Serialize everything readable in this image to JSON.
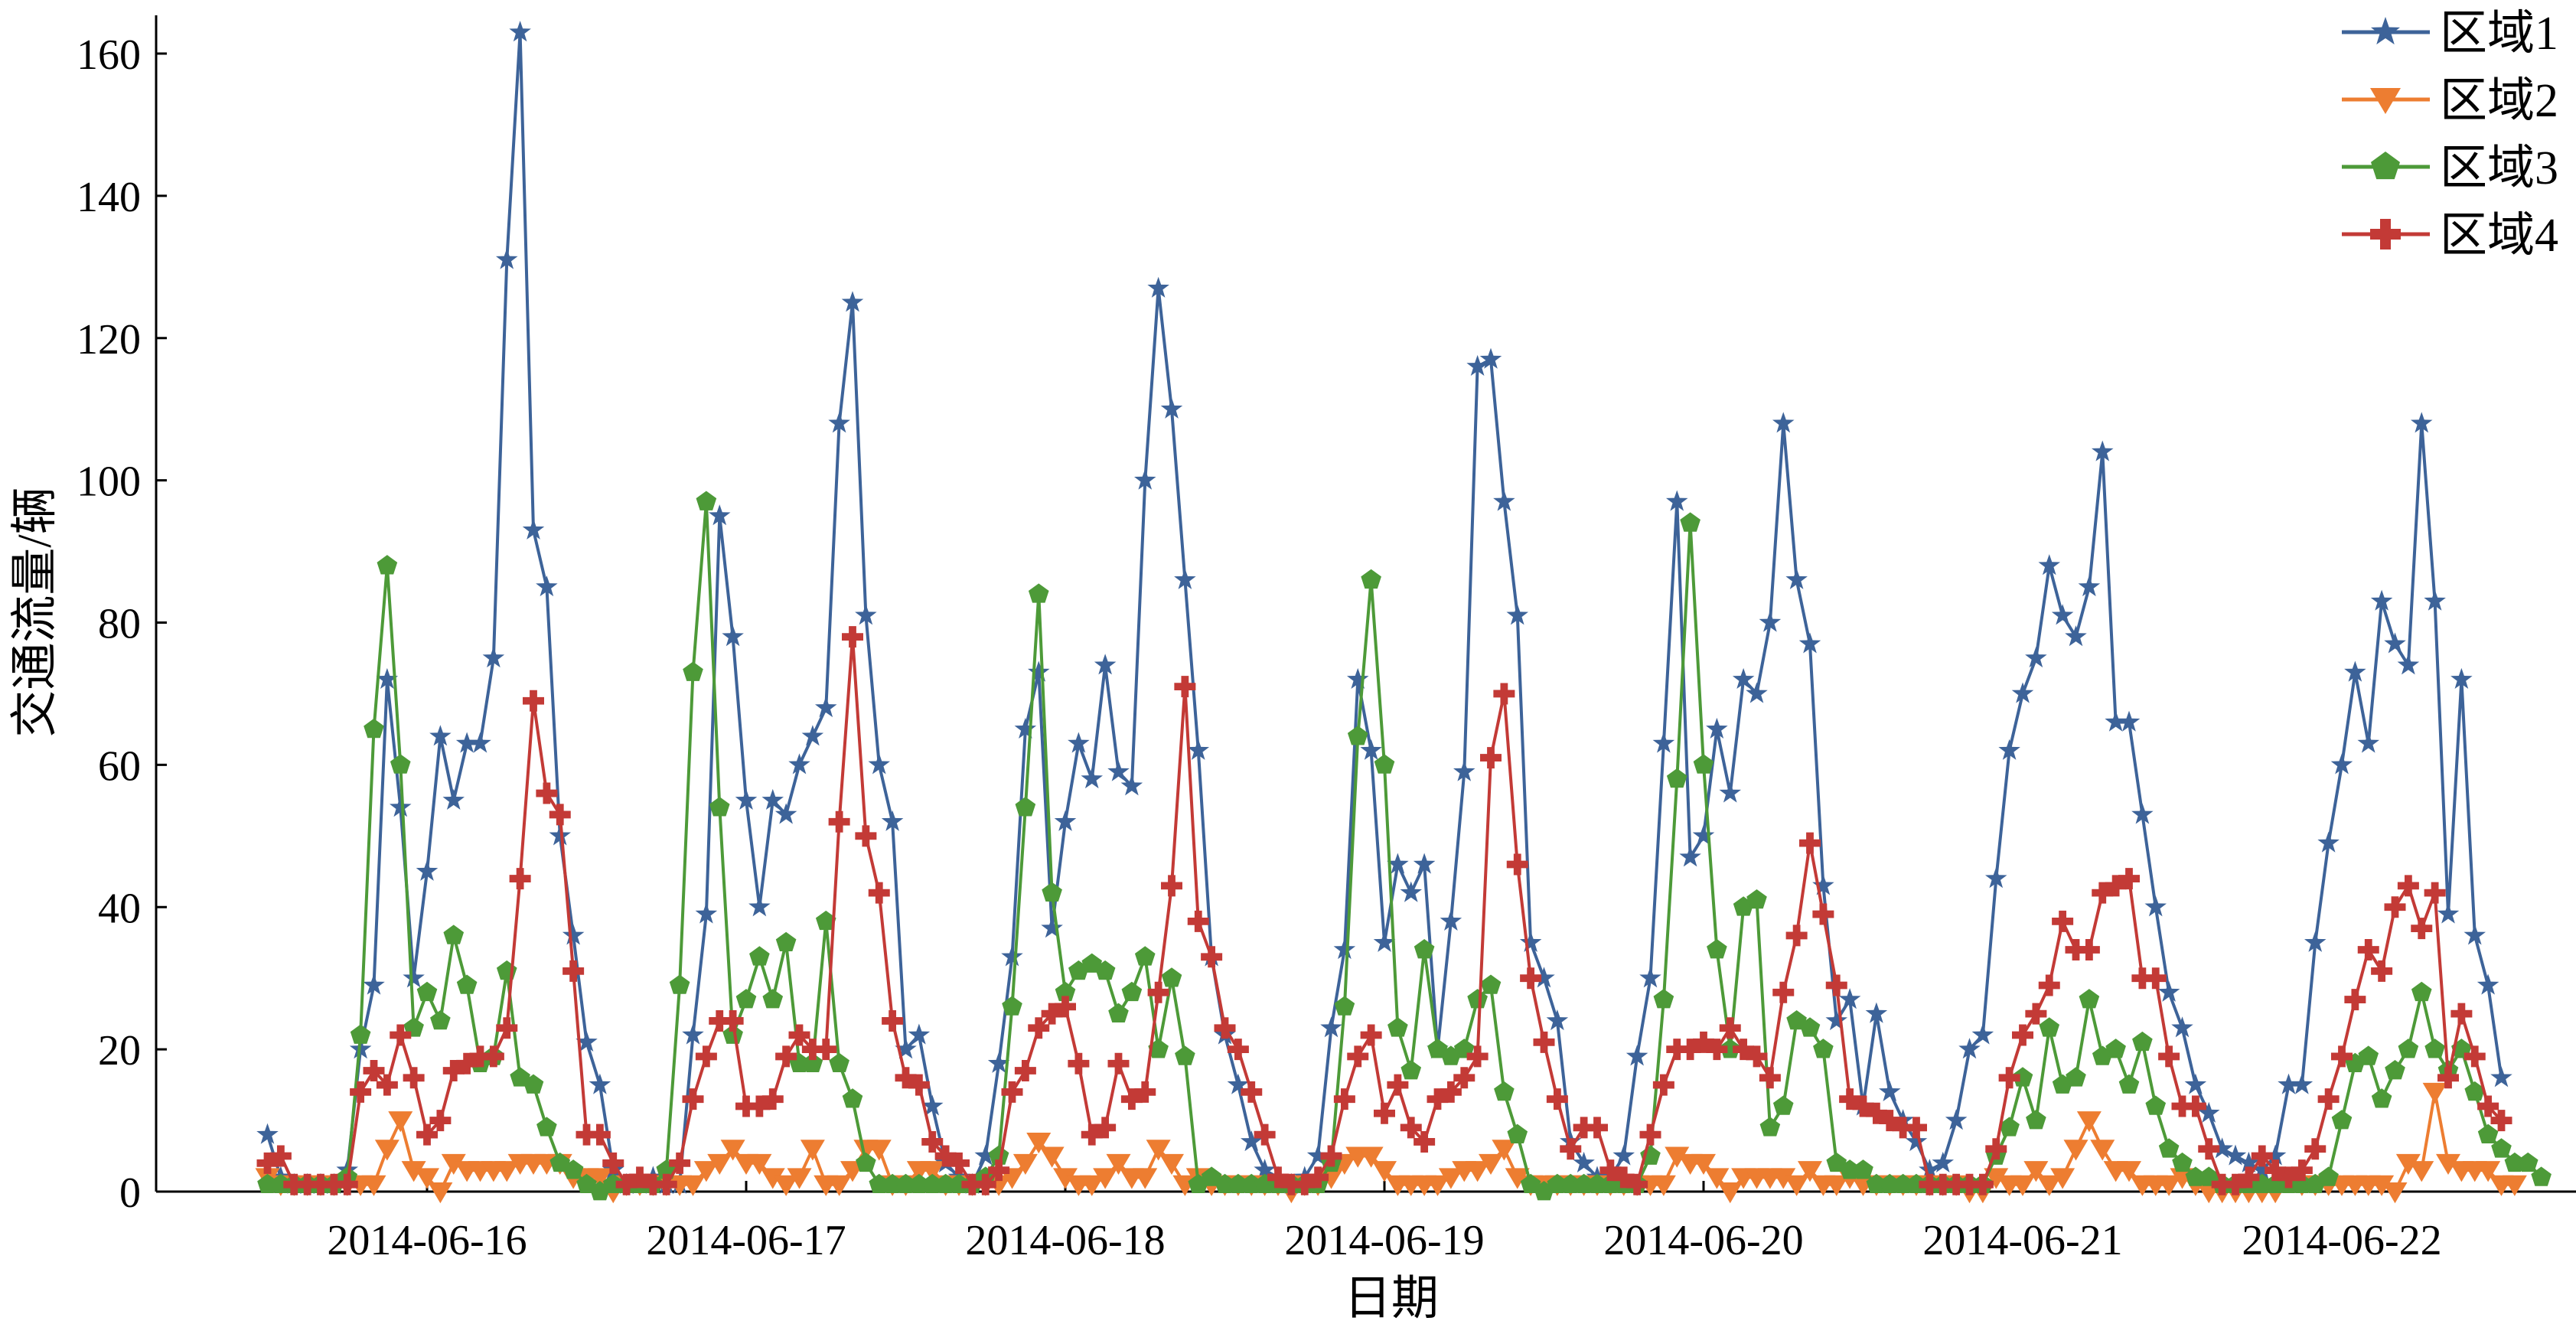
{
  "chart_data": {
    "type": "line",
    "xlabel": "日期",
    "ylabel": "交通流量/辆",
    "ylim": [
      0,
      160
    ],
    "yticks": [
      0,
      20,
      40,
      60,
      80,
      100,
      120,
      140,
      160
    ],
    "ytick_labels": [
      "0",
      "20",
      "40",
      "60",
      "80",
      "100",
      "120",
      "140",
      "160"
    ],
    "xticks": [
      {
        "label": "2014-06-16",
        "hour": 24
      },
      {
        "label": "2014-06-17",
        "hour": 48
      },
      {
        "label": "2014-06-18",
        "hour": 72
      },
      {
        "label": "2014-06-19",
        "hour": 96
      },
      {
        "label": "2014-06-20",
        "hour": 120
      },
      {
        "label": "2014-06-21",
        "hour": 144
      },
      {
        "label": "2014-06-22",
        "hour": 168
      }
    ],
    "x_unit": "hourly samples starting 2014-06-15 12:00",
    "x_start_hour": 12,
    "xlim": [
      4,
      183
    ],
    "grid": false,
    "legend_position": "top-right",
    "series": [
      {
        "name": "区域1",
        "color": "#3d6399",
        "marker": "star",
        "values": [
          8,
          2,
          1,
          1,
          1,
          1,
          3,
          20,
          29,
          72,
          54,
          30,
          45,
          64,
          55,
          63,
          63,
          75,
          131,
          163,
          93,
          85,
          50,
          36,
          21,
          15,
          3,
          1,
          1,
          2,
          1,
          1,
          22,
          39,
          95,
          78,
          55,
          40,
          55,
          53,
          60,
          64,
          68,
          108,
          125,
          81,
          60,
          52,
          20,
          22,
          12,
          4,
          2,
          1,
          5,
          18,
          33,
          65,
          73,
          37,
          52,
          63,
          58,
          74,
          59,
          57,
          100,
          127,
          110,
          86,
          62,
          33,
          22,
          15,
          7,
          3,
          2,
          1,
          2,
          5,
          23,
          34,
          72,
          62,
          35,
          46,
          42,
          46,
          20,
          38,
          59,
          116,
          117,
          97,
          81,
          35,
          30,
          24,
          7,
          4,
          2,
          2,
          5,
          19,
          30,
          63,
          97,
          47,
          50,
          65,
          56,
          72,
          70,
          80,
          108,
          86,
          77,
          43,
          24,
          27,
          12,
          25,
          14,
          10,
          7,
          3,
          4,
          10,
          20,
          22,
          44,
          62,
          70,
          75,
          88,
          81,
          78,
          85,
          104,
          66,
          66,
          53,
          40,
          28,
          23,
          15,
          11,
          6,
          5,
          4,
          3,
          5,
          15,
          15,
          35,
          49,
          60,
          73,
          63,
          83,
          77,
          74,
          108,
          83,
          39,
          72,
          36,
          29,
          16
        ]
      },
      {
        "name": "区域2",
        "color": "#ed7d31",
        "marker": "triangle-down",
        "values": [
          2,
          1,
          1,
          1,
          1,
          1,
          1,
          1,
          1,
          6,
          10,
          3,
          2,
          0,
          4,
          3,
          3,
          3,
          3,
          4,
          4,
          4,
          4,
          2,
          2,
          2,
          0,
          1,
          1,
          1,
          1,
          1,
          1,
          3,
          4,
          6,
          4,
          4,
          2,
          1,
          2,
          6,
          1,
          1,
          3,
          6,
          6,
          1,
          1,
          3,
          3,
          1,
          1,
          1,
          1,
          1,
          2,
          4,
          7,
          5,
          2,
          1,
          1,
          2,
          4,
          2,
          2,
          6,
          4,
          1,
          2,
          1,
          1,
          1,
          1,
          1,
          1,
          0,
          1,
          1,
          2,
          4,
          5,
          5,
          3,
          1,
          1,
          1,
          1,
          2,
          3,
          3,
          4,
          6,
          2,
          1,
          1,
          1,
          1,
          1,
          1,
          1,
          1,
          1,
          1,
          1,
          5,
          4,
          4,
          2,
          0,
          2,
          2,
          2,
          2,
          1,
          3,
          1,
          1,
          2,
          1,
          1,
          1,
          1,
          1,
          1,
          1,
          1,
          0,
          0,
          2,
          1,
          1,
          3,
          1,
          2,
          6,
          10,
          6,
          3,
          3,
          1,
          1,
          1,
          2,
          1,
          0,
          0,
          0,
          0,
          0,
          0,
          2,
          1,
          1,
          1,
          1,
          1,
          1,
          1,
          0,
          4,
          3,
          14,
          4,
          3,
          3,
          3,
          1,
          1
        ]
      },
      {
        "name": "区域3",
        "color": "#4d9a38",
        "marker": "pentagon",
        "values": [
          1,
          1,
          1,
          1,
          1,
          1,
          2,
          22,
          65,
          88,
          60,
          23,
          28,
          24,
          36,
          29,
          18,
          19,
          31,
          16,
          15,
          9,
          4,
          3,
          1,
          0,
          1,
          1,
          1,
          1,
          3,
          29,
          73,
          97,
          54,
          22,
          27,
          33,
          27,
          35,
          18,
          18,
          38,
          18,
          13,
          4,
          1,
          1,
          1,
          1,
          1,
          1,
          1,
          1,
          2,
          5,
          26,
          54,
          84,
          42,
          28,
          31,
          32,
          31,
          25,
          28,
          33,
          20,
          30,
          19,
          1,
          2,
          1,
          1,
          1,
          1,
          1,
          1,
          1,
          1,
          4,
          26,
          64,
          86,
          60,
          23,
          17,
          34,
          20,
          19,
          20,
          27,
          29,
          14,
          8,
          1,
          0,
          1,
          1,
          1,
          1,
          1,
          1,
          1,
          5,
          27,
          58,
          94,
          60,
          34,
          20,
          40,
          41,
          9,
          12,
          24,
          23,
          20,
          4,
          3,
          3,
          1,
          1,
          1,
          1,
          1,
          1,
          1,
          1,
          1,
          5,
          9,
          16,
          10,
          23,
          15,
          16,
          27,
          19,
          20,
          15,
          21,
          12,
          6,
          4,
          2,
          2,
          1,
          1,
          1,
          1,
          1,
          1,
          1,
          1,
          2,
          10,
          18,
          19,
          13,
          17,
          20,
          28,
          20,
          17,
          20,
          14,
          8,
          6,
          4,
          4,
          2
        ]
      },
      {
        "name": "区域4",
        "color": "#c33a36",
        "marker": "cross",
        "values": [
          4,
          5,
          1,
          1,
          1,
          1,
          1,
          14,
          17,
          15,
          22,
          16,
          8,
          10,
          17,
          18,
          19,
          19,
          23,
          44,
          69,
          56,
          53,
          31,
          8,
          8,
          4,
          1,
          2,
          1,
          1,
          4,
          13,
          19,
          24,
          24,
          12,
          12,
          13,
          19,
          22,
          20,
          20,
          52,
          78,
          50,
          42,
          24,
          16,
          15,
          7,
          5,
          4,
          1,
          1,
          3,
          14,
          17,
          23,
          25,
          26,
          18,
          8,
          9,
          18,
          13,
          14,
          28,
          43,
          71,
          38,
          33,
          23,
          20,
          14,
          8,
          2,
          1,
          1,
          2,
          5,
          13,
          19,
          22,
          11,
          15,
          9,
          7,
          13,
          14,
          16,
          19,
          61,
          70,
          46,
          30,
          21,
          13,
          6,
          9,
          9,
          3,
          2,
          1,
          8,
          15,
          20,
          20,
          21,
          20,
          23,
          20,
          19,
          16,
          28,
          36,
          49,
          39,
          29,
          13,
          12,
          11,
          10,
          9,
          9,
          1,
          1,
          1,
          1,
          1,
          6,
          16,
          22,
          25,
          29,
          38,
          34,
          34,
          42,
          43,
          44,
          30,
          30,
          19,
          12,
          12,
          6,
          1,
          1,
          2,
          5,
          3,
          2,
          3,
          6,
          13,
          19,
          27,
          34,
          31,
          40,
          43,
          37,
          42,
          16,
          25,
          19,
          12,
          10
        ]
      }
    ]
  }
}
